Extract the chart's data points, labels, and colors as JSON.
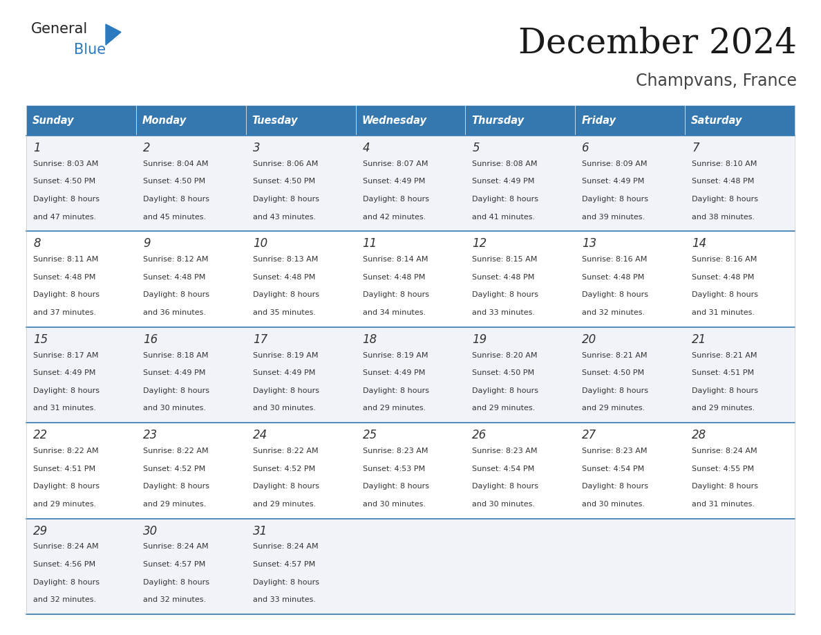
{
  "title": "December 2024",
  "subtitle": "Champvans, France",
  "header_color": "#3578b0",
  "header_text_color": "#ffffff",
  "days_of_week": [
    "Sunday",
    "Monday",
    "Tuesday",
    "Wednesday",
    "Thursday",
    "Friday",
    "Saturday"
  ],
  "bg_color": "#ffffff",
  "cell_bg_even": "#f0f4f8",
  "cell_bg_odd": "#ffffff",
  "separator_color": "#3578b0",
  "text_color": "#333333",
  "logo_general_color": "#222222",
  "logo_blue_color": "#2b7abf",
  "weeks": [
    [
      {
        "day": 1,
        "sunrise": "8:03 AM",
        "sunset": "4:50 PM",
        "daylight_hours": 8,
        "daylight_minutes": 47
      },
      {
        "day": 2,
        "sunrise": "8:04 AM",
        "sunset": "4:50 PM",
        "daylight_hours": 8,
        "daylight_minutes": 45
      },
      {
        "day": 3,
        "sunrise": "8:06 AM",
        "sunset": "4:50 PM",
        "daylight_hours": 8,
        "daylight_minutes": 43
      },
      {
        "day": 4,
        "sunrise": "8:07 AM",
        "sunset": "4:49 PM",
        "daylight_hours": 8,
        "daylight_minutes": 42
      },
      {
        "day": 5,
        "sunrise": "8:08 AM",
        "sunset": "4:49 PM",
        "daylight_hours": 8,
        "daylight_minutes": 41
      },
      {
        "day": 6,
        "sunrise": "8:09 AM",
        "sunset": "4:49 PM",
        "daylight_hours": 8,
        "daylight_minutes": 39
      },
      {
        "day": 7,
        "sunrise": "8:10 AM",
        "sunset": "4:48 PM",
        "daylight_hours": 8,
        "daylight_minutes": 38
      }
    ],
    [
      {
        "day": 8,
        "sunrise": "8:11 AM",
        "sunset": "4:48 PM",
        "daylight_hours": 8,
        "daylight_minutes": 37
      },
      {
        "day": 9,
        "sunrise": "8:12 AM",
        "sunset": "4:48 PM",
        "daylight_hours": 8,
        "daylight_minutes": 36
      },
      {
        "day": 10,
        "sunrise": "8:13 AM",
        "sunset": "4:48 PM",
        "daylight_hours": 8,
        "daylight_minutes": 35
      },
      {
        "day": 11,
        "sunrise": "8:14 AM",
        "sunset": "4:48 PM",
        "daylight_hours": 8,
        "daylight_minutes": 34
      },
      {
        "day": 12,
        "sunrise": "8:15 AM",
        "sunset": "4:48 PM",
        "daylight_hours": 8,
        "daylight_minutes": 33
      },
      {
        "day": 13,
        "sunrise": "8:16 AM",
        "sunset": "4:48 PM",
        "daylight_hours": 8,
        "daylight_minutes": 32
      },
      {
        "day": 14,
        "sunrise": "8:16 AM",
        "sunset": "4:48 PM",
        "daylight_hours": 8,
        "daylight_minutes": 31
      }
    ],
    [
      {
        "day": 15,
        "sunrise": "8:17 AM",
        "sunset": "4:49 PM",
        "daylight_hours": 8,
        "daylight_minutes": 31
      },
      {
        "day": 16,
        "sunrise": "8:18 AM",
        "sunset": "4:49 PM",
        "daylight_hours": 8,
        "daylight_minutes": 30
      },
      {
        "day": 17,
        "sunrise": "8:19 AM",
        "sunset": "4:49 PM",
        "daylight_hours": 8,
        "daylight_minutes": 30
      },
      {
        "day": 18,
        "sunrise": "8:19 AM",
        "sunset": "4:49 PM",
        "daylight_hours": 8,
        "daylight_minutes": 29
      },
      {
        "day": 19,
        "sunrise": "8:20 AM",
        "sunset": "4:50 PM",
        "daylight_hours": 8,
        "daylight_minutes": 29
      },
      {
        "day": 20,
        "sunrise": "8:21 AM",
        "sunset": "4:50 PM",
        "daylight_hours": 8,
        "daylight_minutes": 29
      },
      {
        "day": 21,
        "sunrise": "8:21 AM",
        "sunset": "4:51 PM",
        "daylight_hours": 8,
        "daylight_minutes": 29
      }
    ],
    [
      {
        "day": 22,
        "sunrise": "8:22 AM",
        "sunset": "4:51 PM",
        "daylight_hours": 8,
        "daylight_minutes": 29
      },
      {
        "day": 23,
        "sunrise": "8:22 AM",
        "sunset": "4:52 PM",
        "daylight_hours": 8,
        "daylight_minutes": 29
      },
      {
        "day": 24,
        "sunrise": "8:22 AM",
        "sunset": "4:52 PM",
        "daylight_hours": 8,
        "daylight_minutes": 29
      },
      {
        "day": 25,
        "sunrise": "8:23 AM",
        "sunset": "4:53 PM",
        "daylight_hours": 8,
        "daylight_minutes": 30
      },
      {
        "day": 26,
        "sunrise": "8:23 AM",
        "sunset": "4:54 PM",
        "daylight_hours": 8,
        "daylight_minutes": 30
      },
      {
        "day": 27,
        "sunrise": "8:23 AM",
        "sunset": "4:54 PM",
        "daylight_hours": 8,
        "daylight_minutes": 30
      },
      {
        "day": 28,
        "sunrise": "8:24 AM",
        "sunset": "4:55 PM",
        "daylight_hours": 8,
        "daylight_minutes": 31
      }
    ],
    [
      {
        "day": 29,
        "sunrise": "8:24 AM",
        "sunset": "4:56 PM",
        "daylight_hours": 8,
        "daylight_minutes": 32
      },
      {
        "day": 30,
        "sunrise": "8:24 AM",
        "sunset": "4:57 PM",
        "daylight_hours": 8,
        "daylight_minutes": 32
      },
      {
        "day": 31,
        "sunrise": "8:24 AM",
        "sunset": "4:57 PM",
        "daylight_hours": 8,
        "daylight_minutes": 33
      },
      null,
      null,
      null,
      null
    ]
  ]
}
